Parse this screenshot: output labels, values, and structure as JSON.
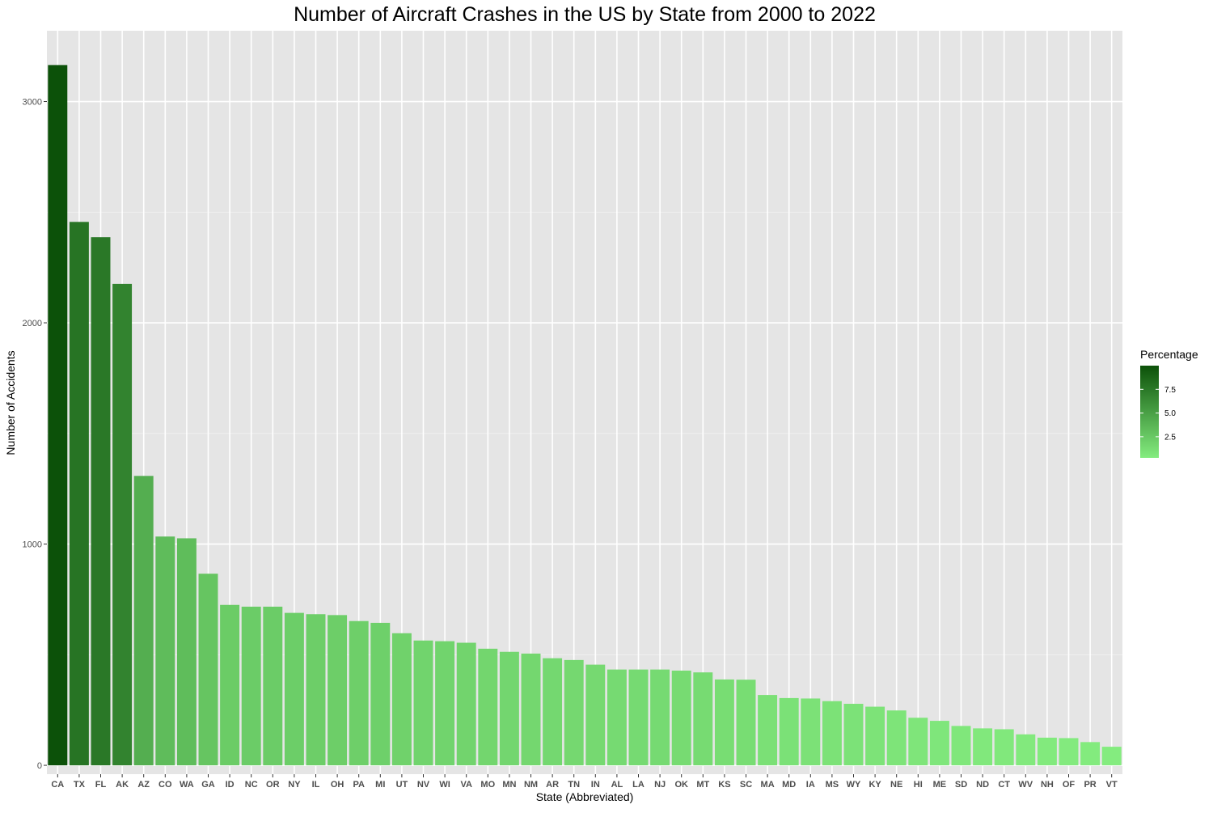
{
  "chart_data": {
    "type": "bar",
    "title": "Number of Aircraft Crashes in the US by State from 2000 to 2022",
    "xlabel": "State (Abbreviated)",
    "ylabel": "Number of Accidents",
    "ylim": [
      -40,
      3320
    ],
    "yticks": [
      0,
      1000,
      2000,
      3000
    ],
    "ytick_labels": [
      "0",
      "1000",
      "2000",
      "3000"
    ],
    "grid": true,
    "categories": [
      "CA",
      "TX",
      "FL",
      "AK",
      "AZ",
      "CO",
      "WA",
      "GA",
      "ID",
      "NC",
      "OR",
      "NY",
      "IL",
      "OH",
      "PA",
      "MI",
      "UT",
      "NV",
      "WI",
      "VA",
      "MO",
      "MN",
      "NM",
      "AR",
      "TN",
      "IN",
      "AL",
      "LA",
      "NJ",
      "OK",
      "MT",
      "KS",
      "SC",
      "MA",
      "MD",
      "IA",
      "MS",
      "WY",
      "KY",
      "NE",
      "HI",
      "ME",
      "SD",
      "ND",
      "CT",
      "WV",
      "NH",
      "OF",
      "PR",
      "VT"
    ],
    "values": [
      3165,
      2456,
      2387,
      2176,
      1308,
      1034,
      1026,
      866,
      725,
      717,
      717,
      689,
      683,
      679,
      652,
      644,
      597,
      564,
      561,
      554,
      527,
      513,
      505,
      484,
      476,
      455,
      433,
      433,
      433,
      428,
      420,
      388,
      387,
      318,
      304,
      302,
      290,
      278,
      265,
      248,
      215,
      201,
      178,
      167,
      163,
      140,
      125,
      123,
      105,
      84
    ],
    "legend": {
      "title": "Percentage",
      "position": "right",
      "ticks": [
        2.5,
        5.0,
        7.5
      ],
      "tick_labels": [
        "2.5",
        "5.0",
        "7.5"
      ],
      "range": [
        0.27,
        10.0
      ],
      "low_color": "#84ec7f",
      "high_color": "#0c5109"
    }
  }
}
